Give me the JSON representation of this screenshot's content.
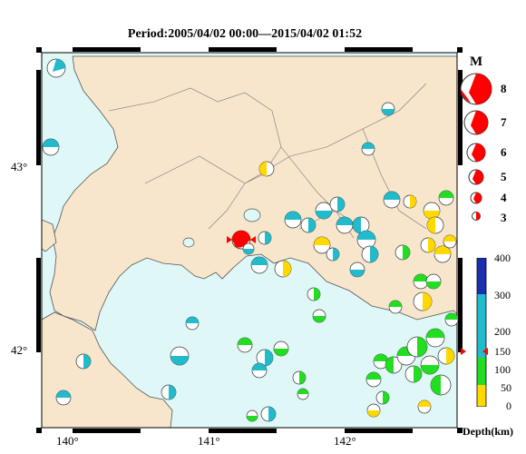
{
  "title": "Period:2005/04/02 00:00—2015/04/02 01:52",
  "colors": {
    "sea": "#dff7f7",
    "land": "#f7e6cc",
    "frame": "#000000",
    "depth_0_30": "#ffd800",
    "depth_30_70": "#ffd800",
    "depth_70_150": "#22dd22",
    "depth_150_250": "#22bbcc",
    "depth_250_400": "#1a2fb0",
    "mainshock": "#ff0000"
  },
  "axes": {
    "lat_labels": [
      "43°",
      "42°"
    ],
    "lon_labels": [
      "140°",
      "141°",
      "142°"
    ]
  },
  "legend": {
    "heading": "M",
    "magnitudes": [
      "8",
      "7",
      "6",
      "5",
      "4",
      "3"
    ]
  },
  "colorbar": {
    "ticks": [
      "400",
      "300",
      "200",
      "150",
      "100",
      "50",
      "0"
    ],
    "label": "Depth(km)"
  }
}
